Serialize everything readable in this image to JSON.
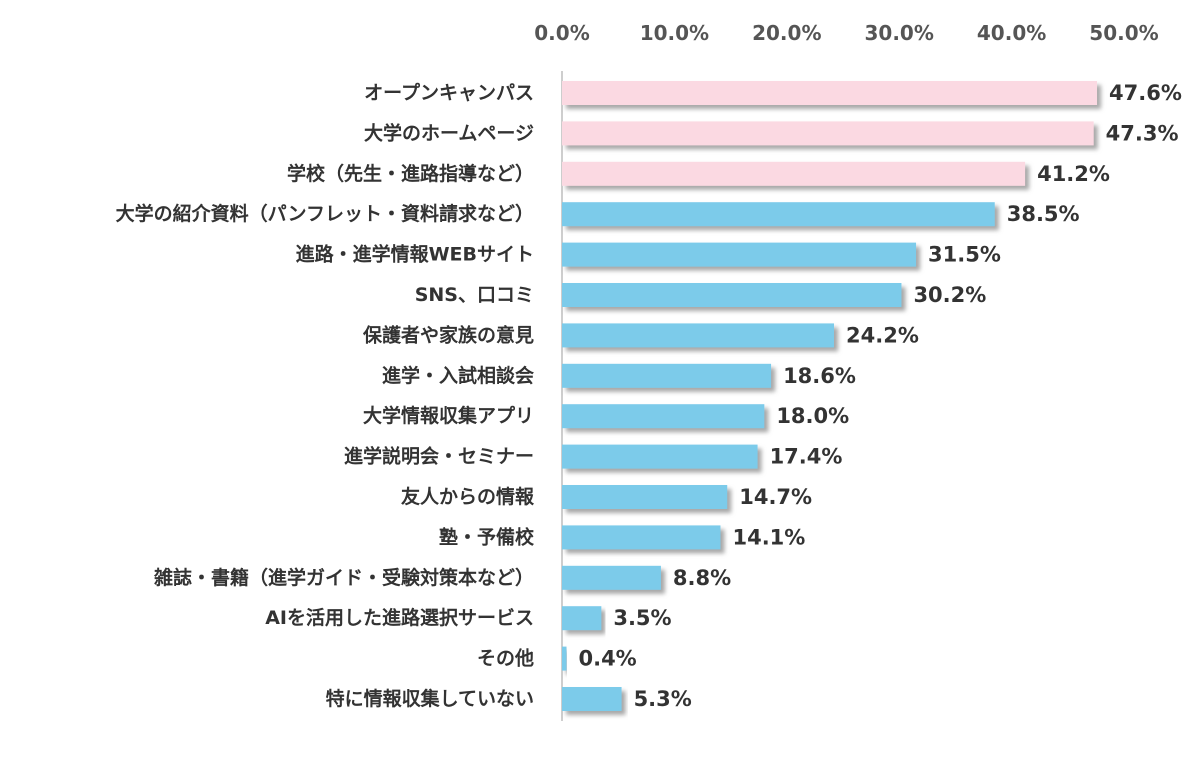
{
  "chart_data": {
    "type": "bar",
    "orientation": "horizontal",
    "title": "",
    "xlabel": "",
    "ylabel": "",
    "xlim": [
      0,
      50
    ],
    "x_ticks": [
      0,
      10,
      20,
      30,
      40,
      50
    ],
    "x_tick_labels": [
      "0.0%",
      "10.0%",
      "20.0%",
      "30.0%",
      "40.0%",
      "50.0%"
    ],
    "axis_position": "top",
    "grid": false,
    "legend": "none",
    "categories": [
      "オープンキャンパス",
      "大学のホームページ",
      "学校（先生・進路指導など）",
      "大学の紹介資料（パンフレット・資料請求など）",
      "進路・進学情報WEBサイト",
      "SNS、口コミ",
      "保護者や家族の意見",
      "進学・入試相談会",
      "大学情報収集アプリ",
      "進学説明会・セミナー",
      "友人からの情報",
      "塾・予備校",
      "雑誌・書籍（進学ガイド・受験対策本など）",
      "AIを活用した進路選択サービス",
      "その他",
      "特に情報収集していない"
    ],
    "values": [
      47.6,
      47.3,
      41.2,
      38.5,
      31.5,
      30.2,
      24.2,
      18.6,
      18.0,
      17.4,
      14.7,
      14.1,
      8.8,
      3.5,
      0.4,
      5.3
    ],
    "value_labels": [
      "47.6%",
      "47.3%",
      "41.2%",
      "38.5%",
      "31.5%",
      "30.2%",
      "24.2%",
      "18.6%",
      "18.0%",
      "17.4%",
      "14.7%",
      "14.1%",
      "8.8%",
      "3.5%",
      "0.4%",
      "5.3%"
    ],
    "highlight_count": 3,
    "colors": {
      "highlight": "#fbd9e2",
      "normal": "#7ccbea",
      "shadow": "#9a9a9a",
      "axis_line": "#bdbdbd",
      "tick_text": "#555555",
      "label_text": "#333333"
    }
  }
}
